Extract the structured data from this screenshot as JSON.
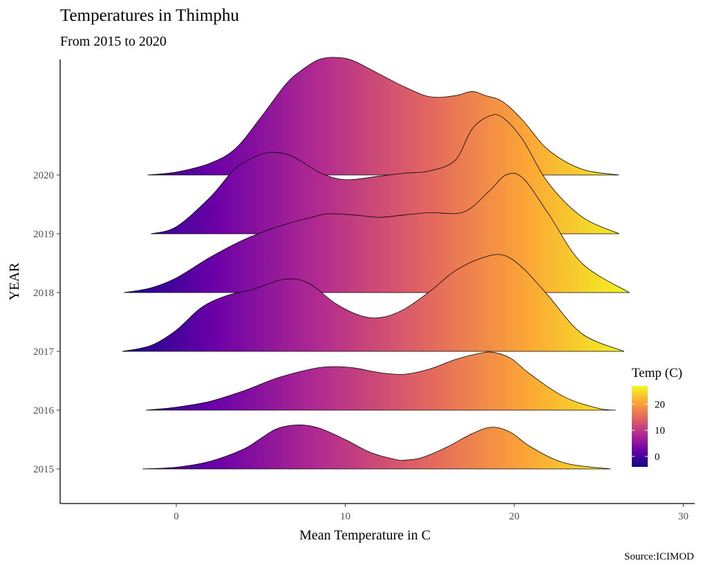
{
  "chart_data": {
    "type": "area",
    "subtype": "ridgeline",
    "title": "Temperatures in Thimphu",
    "subtitle": "From 2015 to 2020",
    "xlabel": "Mean Temperature in C",
    "ylabel": "YEAR",
    "caption": "Source:ICIMOD",
    "xlim": [
      -6.8,
      30.5
    ],
    "xticks": [
      0,
      10,
      20,
      30
    ],
    "grid": false,
    "legend": {
      "title": "Temp (C)",
      "position": "right",
      "ticks": [
        0,
        10,
        20
      ],
      "range": [
        -4,
        27
      ],
      "gradient": [
        "#0d0887",
        "#6a00a8",
        "#b12a90",
        "#e16462",
        "#fca636",
        "#f0f921"
      ]
    },
    "series": [
      {
        "name": "2015",
        "x": [
          -2.0,
          0,
          2,
          4,
          5,
          6,
          7.3,
          8.5,
          10,
          11.5,
          13,
          13.5,
          14.5,
          16,
          17.5,
          18.7,
          19.8,
          21,
          23,
          25.7
        ],
        "y": [
          0,
          0.03,
          0.13,
          0.34,
          0.52,
          0.69,
          0.75,
          0.69,
          0.5,
          0.28,
          0.16,
          0.15,
          0.19,
          0.37,
          0.6,
          0.71,
          0.62,
          0.37,
          0.1,
          0
        ]
      },
      {
        "name": "2016",
        "x": [
          -1.8,
          0,
          2,
          4,
          6,
          8,
          9.2,
          10.5,
          12,
          13.5,
          15,
          16.5,
          18,
          18.8,
          19.8,
          21,
          23,
          25,
          26
        ],
        "y": [
          0,
          0.05,
          0.15,
          0.33,
          0.55,
          0.7,
          0.74,
          0.72,
          0.64,
          0.61,
          0.7,
          0.86,
          0.97,
          0.98,
          0.88,
          0.6,
          0.22,
          0.03,
          0
        ]
      },
      {
        "name": "2017",
        "x": [
          -3.2,
          -1.5,
          0,
          1.5,
          3,
          4.5,
          6,
          7,
          8,
          9.5,
          11,
          12.2,
          13.5,
          15,
          16.5,
          18,
          19.3,
          20.5,
          22,
          24,
          26.5
        ],
        "y": [
          0,
          0.1,
          0.36,
          0.75,
          0.95,
          1.05,
          1.2,
          1.23,
          1.13,
          0.8,
          0.6,
          0.58,
          0.72,
          1.02,
          1.37,
          1.58,
          1.64,
          1.42,
          0.95,
          0.3,
          0
        ]
      },
      {
        "name": "2018",
        "x": [
          -3.1,
          -1.5,
          0,
          2,
          4,
          6,
          8,
          9,
          10.5,
          12,
          13.5,
          15,
          17,
          18.5,
          19.5,
          20.5,
          22,
          24,
          26.8
        ],
        "y": [
          0,
          0.08,
          0.25,
          0.6,
          0.9,
          1.12,
          1.28,
          1.34,
          1.32,
          1.28,
          1.32,
          1.36,
          1.37,
          1.72,
          2.0,
          1.95,
          1.35,
          0.5,
          0
        ]
      },
      {
        "name": "2019",
        "x": [
          -1.5,
          0,
          2,
          3.5,
          5,
          6,
          7,
          8.5,
          10,
          12,
          13.5,
          15,
          16.5,
          17.5,
          18.5,
          19.3,
          20.5,
          22,
          24,
          26.2
        ],
        "y": [
          0,
          0.12,
          0.62,
          1.11,
          1.35,
          1.38,
          1.3,
          1.04,
          0.92,
          0.98,
          1.03,
          1.07,
          1.25,
          1.78,
          2.0,
          1.98,
          1.6,
          0.87,
          0.29,
          0
        ]
      },
      {
        "name": "2020",
        "x": [
          -1.7,
          0,
          2,
          3.5,
          5,
          6.5,
          7.5,
          8.5,
          9.5,
          10.5,
          12,
          13.5,
          15,
          16.5,
          17.5,
          18.3,
          19.3,
          20.5,
          22,
          24,
          26.2
        ],
        "y": [
          0,
          0.05,
          0.2,
          0.45,
          0.98,
          1.55,
          1.8,
          1.97,
          2.0,
          1.94,
          1.72,
          1.5,
          1.33,
          1.35,
          1.42,
          1.35,
          1.25,
          0.93,
          0.43,
          0.1,
          0
        ]
      }
    ]
  }
}
